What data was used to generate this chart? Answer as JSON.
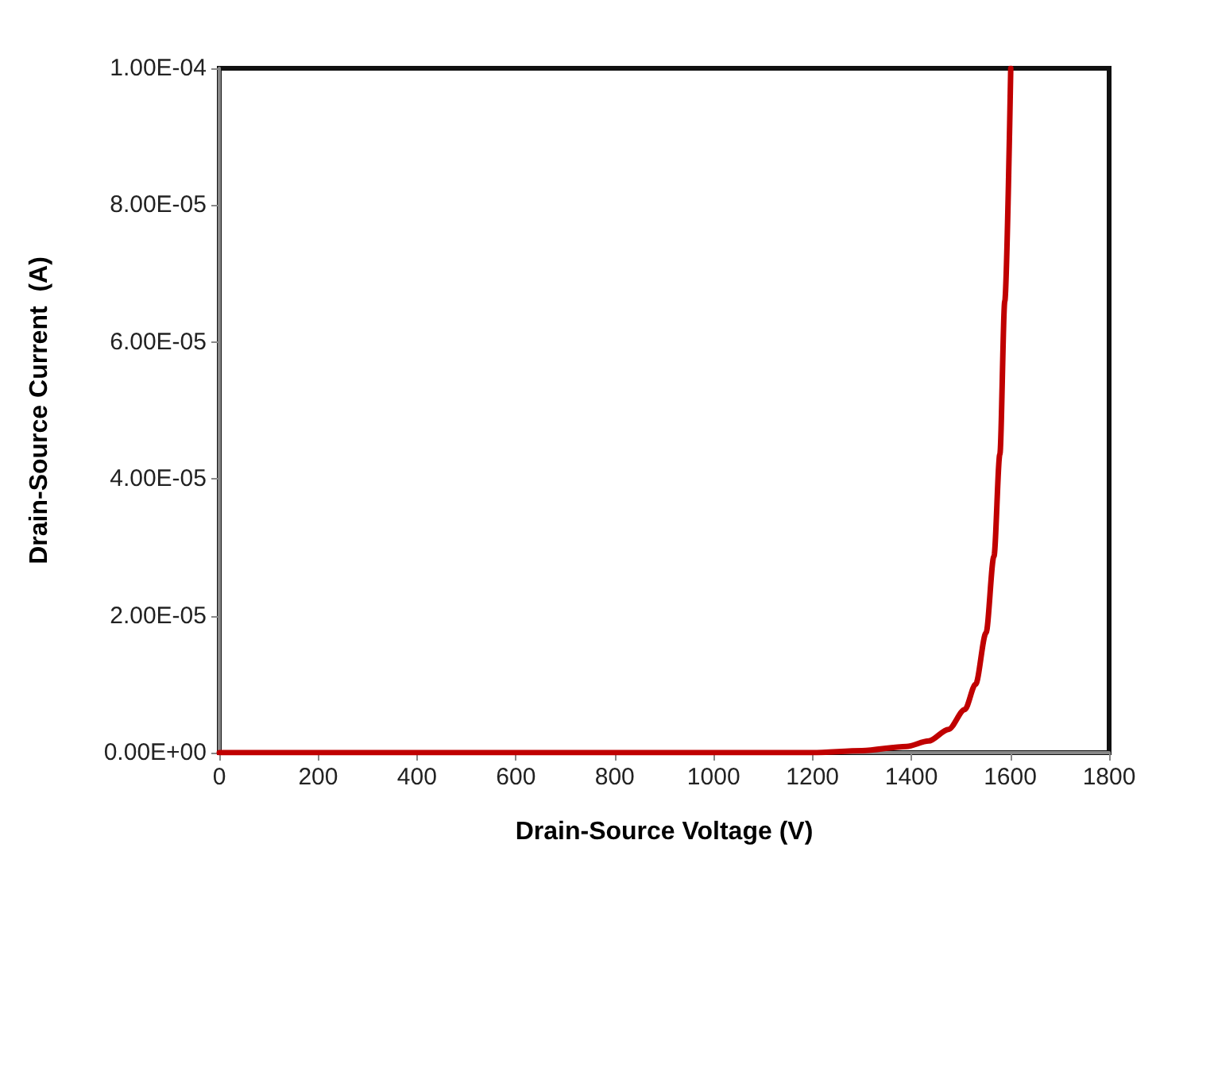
{
  "chart_data": {
    "type": "line",
    "xlabel": "Drain-Source Voltage (V)",
    "ylabel": "Drain-Source Current  (A)",
    "x": [
      0,
      200,
      400,
      600,
      800,
      1000,
      1100,
      1200,
      1300,
      1390,
      1435,
      1475,
      1508,
      1530,
      1551,
      1567,
      1579,
      1589,
      1601
    ],
    "series": [
      {
        "color": "#c00000",
        "values": [
          0,
          0,
          0,
          0,
          0,
          0,
          0,
          0,
          3e-07,
          9e-07,
          1.7e-06,
          3.4e-06,
          6.3e-06,
          1e-05,
          1.75e-05,
          2.87e-05,
          4.36e-05,
          6.6e-05,
          0.0001
        ]
      }
    ],
    "xlim": [
      0,
      1800
    ],
    "xticks": [
      0,
      200,
      400,
      600,
      800,
      1000,
      1200,
      1400,
      1600,
      1800
    ],
    "ylim": [
      0,
      0.0001
    ],
    "yticks": [
      {
        "value": 0,
        "label": "0.00E+00"
      },
      {
        "value": 2e-05,
        "label": "2.00E-05"
      },
      {
        "value": 4e-05,
        "label": "4.00E-05"
      },
      {
        "value": 6e-05,
        "label": "6.00E-05"
      },
      {
        "value": 8e-05,
        "label": "8.00E-05"
      },
      {
        "value": 0.0001,
        "label": "1.00E-04"
      }
    ],
    "grid": false,
    "marker": "none",
    "line_style": "solid"
  }
}
